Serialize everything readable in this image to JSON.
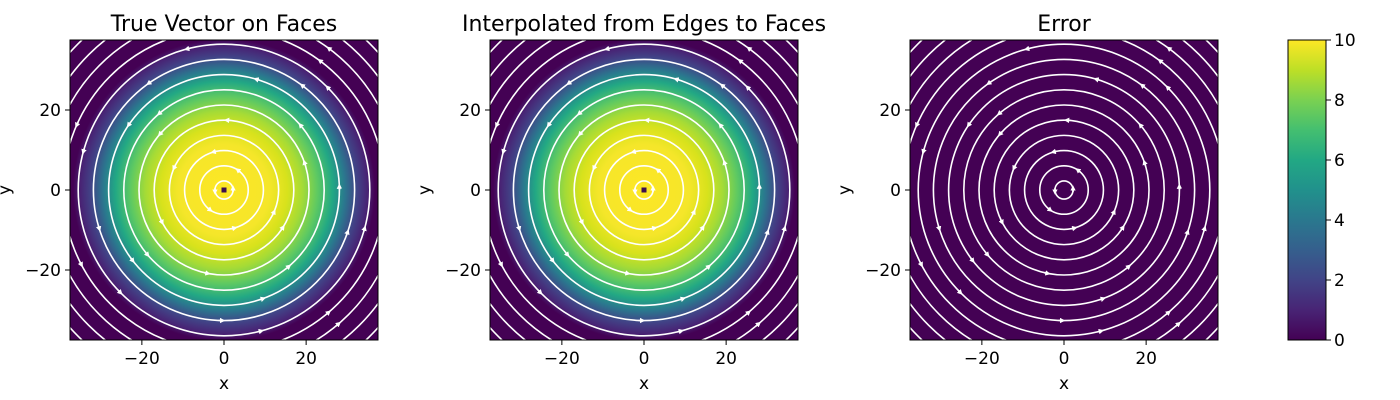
{
  "chart_data": [
    {
      "type": "heatmap",
      "title": "True Vector on Faces",
      "xlabel": "x",
      "ylabel": "y",
      "xlim": [
        -37.5,
        37.5
      ],
      "ylim": [
        -37.5,
        37.5
      ],
      "xticks": [
        -20,
        0,
        20
      ],
      "yticks": [
        -20,
        0,
        20
      ],
      "field": "gaussian_magnitude",
      "peak_value": 10,
      "streamlines": "circular-counterclockwise",
      "colormap": "viridis"
    },
    {
      "type": "heatmap",
      "title": "Interpolated from Edges to Faces",
      "xlabel": "x",
      "ylabel": "y",
      "xlim": [
        -37.5,
        37.5
      ],
      "ylim": [
        -37.5,
        37.5
      ],
      "xticks": [
        -20,
        0,
        20
      ],
      "yticks": [
        -20,
        0,
        20
      ],
      "field": "gaussian_magnitude",
      "peak_value": 10,
      "streamlines": "circular-counterclockwise",
      "colormap": "viridis"
    },
    {
      "type": "heatmap",
      "title": "Error",
      "xlabel": "x",
      "ylabel": "y",
      "xlim": [
        -37.5,
        37.5
      ],
      "ylim": [
        -37.5,
        37.5
      ],
      "xticks": [
        -20,
        0,
        20
      ],
      "yticks": [
        -20,
        0,
        20
      ],
      "field": "near_zero",
      "peak_value": 0,
      "streamlines": "circular-counterclockwise",
      "colormap": "viridis"
    }
  ],
  "colorbar": {
    "min": 0,
    "max": 10,
    "ticks": [
      0,
      2,
      4,
      6,
      8,
      10
    ],
    "colormap": "viridis"
  }
}
